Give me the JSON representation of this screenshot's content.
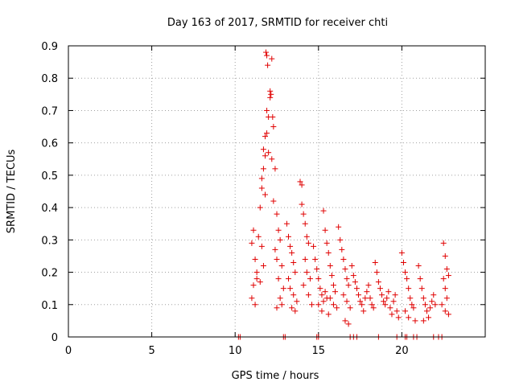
{
  "chart_data": {
    "type": "scatter",
    "title": "Day 163 of 2017, SRMTID for receiver chti",
    "xlabel": "GPS time / hours",
    "ylabel": "SRMTID / TECUs",
    "xlim": [
      0,
      25
    ],
    "ylim": [
      0,
      0.9
    ],
    "xticks": [
      "0",
      "5",
      "10",
      "15",
      "20"
    ],
    "yticks": [
      "0",
      "0.1",
      "0.2",
      "0.3",
      "0.4",
      "0.5",
      "0.6",
      "0.7",
      "0.8",
      "0.9"
    ],
    "grid": true,
    "marker": "plus",
    "color": "#e00000",
    "series": [
      {
        "name": "SRMTID",
        "points": [
          [
            10.2,
            0
          ],
          [
            10.3,
            0
          ],
          [
            12.9,
            0
          ],
          [
            13.0,
            0
          ],
          [
            14.9,
            0
          ],
          [
            15.0,
            0
          ],
          [
            16.9,
            0
          ],
          [
            17.1,
            0
          ],
          [
            17.3,
            0
          ],
          [
            18.6,
            0
          ],
          [
            19.7,
            0
          ],
          [
            20.2,
            0
          ],
          [
            20.3,
            0
          ],
          [
            20.7,
            0
          ],
          [
            20.9,
            0
          ],
          [
            21.9,
            0
          ],
          [
            22.2,
            0
          ],
          [
            22.4,
            0
          ],
          [
            11.0,
            0.29
          ],
          [
            11.1,
            0.33
          ],
          [
            11.2,
            0.24
          ],
          [
            11.3,
            0.2
          ],
          [
            11.4,
            0.31
          ],
          [
            11.5,
            0.4
          ],
          [
            11.6,
            0.28
          ],
          [
            11.7,
            0.22
          ],
          [
            11.1,
            0.16
          ],
          [
            11.3,
            0.18
          ],
          [
            11.0,
            0.12
          ],
          [
            11.2,
            0.1
          ],
          [
            11.5,
            0.17
          ],
          [
            11.6,
            0.46
          ],
          [
            11.7,
            0.52
          ],
          [
            11.8,
            0.56
          ],
          [
            11.9,
            0.63
          ],
          [
            12.0,
            0.68
          ],
          [
            12.1,
            0.74
          ],
          [
            11.9,
            0.7
          ],
          [
            11.8,
            0.62
          ],
          [
            11.7,
            0.58
          ],
          [
            11.6,
            0.49
          ],
          [
            11.8,
            0.44
          ],
          [
            11.85,
            0.88
          ],
          [
            11.9,
            0.87
          ],
          [
            11.95,
            0.84
          ],
          [
            12.2,
            0.86
          ],
          [
            12.1,
            0.76
          ],
          [
            12.15,
            0.75
          ],
          [
            12.3,
            0.65
          ],
          [
            12.25,
            0.68
          ],
          [
            12.0,
            0.57
          ],
          [
            12.2,
            0.55
          ],
          [
            12.4,
            0.52
          ],
          [
            12.3,
            0.42
          ],
          [
            12.5,
            0.38
          ],
          [
            12.6,
            0.33
          ],
          [
            12.7,
            0.3
          ],
          [
            12.4,
            0.27
          ],
          [
            12.5,
            0.24
          ],
          [
            12.8,
            0.22
          ],
          [
            12.6,
            0.18
          ],
          [
            12.9,
            0.15
          ],
          [
            12.7,
            0.12
          ],
          [
            12.8,
            0.1
          ],
          [
            12.5,
            0.09
          ],
          [
            13.1,
            0.35
          ],
          [
            13.2,
            0.31
          ],
          [
            13.3,
            0.28
          ],
          [
            13.4,
            0.26
          ],
          [
            13.5,
            0.23
          ],
          [
            13.6,
            0.2
          ],
          [
            13.2,
            0.18
          ],
          [
            13.3,
            0.15
          ],
          [
            13.5,
            0.13
          ],
          [
            13.7,
            0.11
          ],
          [
            13.4,
            0.09
          ],
          [
            13.6,
            0.08
          ],
          [
            13.9,
            0.48
          ],
          [
            14.0,
            0.47
          ],
          [
            14.0,
            0.41
          ],
          [
            14.1,
            0.38
          ],
          [
            14.2,
            0.35
          ],
          [
            14.3,
            0.31
          ],
          [
            14.4,
            0.29
          ],
          [
            14.2,
            0.24
          ],
          [
            14.3,
            0.2
          ],
          [
            14.5,
            0.18
          ],
          [
            14.1,
            0.16
          ],
          [
            14.4,
            0.13
          ],
          [
            14.6,
            0.1
          ],
          [
            14.7,
            0.28
          ],
          [
            14.8,
            0.24
          ],
          [
            14.9,
            0.21
          ],
          [
            15.0,
            0.18
          ],
          [
            15.1,
            0.15
          ],
          [
            15.2,
            0.13
          ],
          [
            15.3,
            0.11
          ],
          [
            15.0,
            0.1
          ],
          [
            15.2,
            0.08
          ],
          [
            15.4,
            0.14
          ],
          [
            15.5,
            0.12
          ],
          [
            15.3,
            0.39
          ],
          [
            15.4,
            0.33
          ],
          [
            15.5,
            0.29
          ],
          [
            15.6,
            0.26
          ],
          [
            15.7,
            0.22
          ],
          [
            15.8,
            0.19
          ],
          [
            15.9,
            0.16
          ],
          [
            16.0,
            0.14
          ],
          [
            15.7,
            0.12
          ],
          [
            15.9,
            0.1
          ],
          [
            16.1,
            0.09
          ],
          [
            15.6,
            0.07
          ],
          [
            16.2,
            0.34
          ],
          [
            16.3,
            0.3
          ],
          [
            16.4,
            0.27
          ],
          [
            16.5,
            0.24
          ],
          [
            16.6,
            0.21
          ],
          [
            16.7,
            0.18
          ],
          [
            16.8,
            0.16
          ],
          [
            16.5,
            0.13
          ],
          [
            16.7,
            0.11
          ],
          [
            16.9,
            0.09
          ],
          [
            16.6,
            0.05
          ],
          [
            16.8,
            0.04
          ],
          [
            17.0,
            0.22
          ],
          [
            17.1,
            0.19
          ],
          [
            17.2,
            0.17
          ],
          [
            17.3,
            0.15
          ],
          [
            17.4,
            0.13
          ],
          [
            17.5,
            0.11
          ],
          [
            17.6,
            0.1
          ],
          [
            17.8,
            0.12
          ],
          [
            17.9,
            0.14
          ],
          [
            18.0,
            0.16
          ],
          [
            18.1,
            0.12
          ],
          [
            18.2,
            0.1
          ],
          [
            17.7,
            0.08
          ],
          [
            18.3,
            0.09
          ],
          [
            18.4,
            0.23
          ],
          [
            18.5,
            0.2
          ],
          [
            18.6,
            0.17
          ],
          [
            18.7,
            0.15
          ],
          [
            18.8,
            0.13
          ],
          [
            18.9,
            0.11
          ],
          [
            19.0,
            0.1
          ],
          [
            19.1,
            0.12
          ],
          [
            19.2,
            0.14
          ],
          [
            19.3,
            0.09
          ],
          [
            19.4,
            0.07
          ],
          [
            19.5,
            0.11
          ],
          [
            19.6,
            0.13
          ],
          [
            19.7,
            0.08
          ],
          [
            19.8,
            0.06
          ],
          [
            20.0,
            0.26
          ],
          [
            20.1,
            0.23
          ],
          [
            20.2,
            0.2
          ],
          [
            20.3,
            0.18
          ],
          [
            20.4,
            0.15
          ],
          [
            20.5,
            0.12
          ],
          [
            20.6,
            0.1
          ],
          [
            20.2,
            0.08
          ],
          [
            20.4,
            0.06
          ],
          [
            20.7,
            0.09
          ],
          [
            20.8,
            0.05
          ],
          [
            21.0,
            0.22
          ],
          [
            21.1,
            0.18
          ],
          [
            21.2,
            0.15
          ],
          [
            21.3,
            0.12
          ],
          [
            21.4,
            0.1
          ],
          [
            21.5,
            0.08
          ],
          [
            21.6,
            0.06
          ],
          [
            21.7,
            0.09
          ],
          [
            21.8,
            0.11
          ],
          [
            21.9,
            0.13
          ],
          [
            22.0,
            0.1
          ],
          [
            21.3,
            0.05
          ],
          [
            22.5,
            0.29
          ],
          [
            22.6,
            0.25
          ],
          [
            22.7,
            0.21
          ],
          [
            22.5,
            0.18
          ],
          [
            22.6,
            0.15
          ],
          [
            22.7,
            0.12
          ],
          [
            22.4,
            0.1
          ],
          [
            22.6,
            0.08
          ],
          [
            22.8,
            0.19
          ],
          [
            22.8,
            0.07
          ]
        ]
      }
    ]
  }
}
